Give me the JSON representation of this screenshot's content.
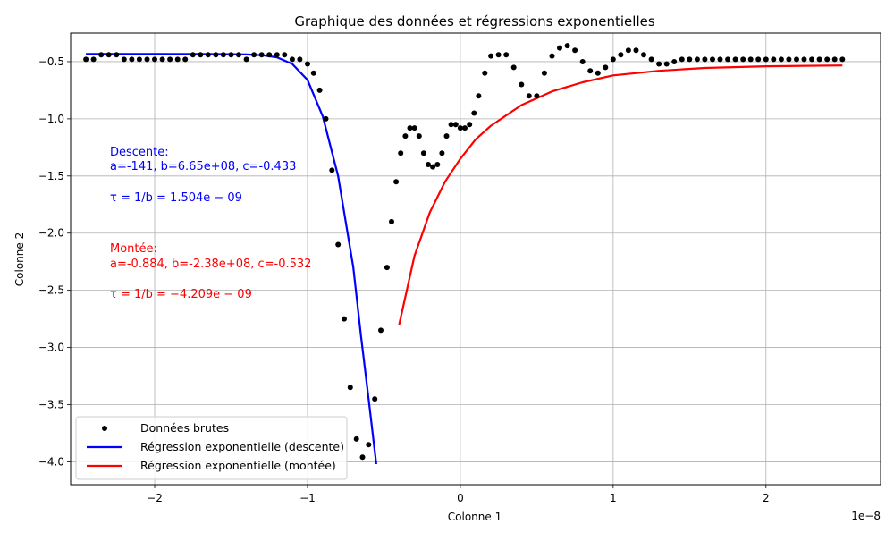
{
  "chart_data": {
    "type": "scatter",
    "title": "Graphique des données et régressions exponentielles",
    "xlabel": "Colonne 1",
    "ylabel": "Colonne 2",
    "x_offset_label": "1e−8",
    "xlim": [
      -2.55e-08,
      2.75e-08
    ],
    "ylim": [
      -4.2,
      -0.25
    ],
    "x_ticks": [
      -2e-08,
      -1e-08,
      0,
      1e-08,
      2e-08
    ],
    "x_tick_labels": [
      "−2",
      "−1",
      "0",
      "1",
      "2"
    ],
    "y_ticks": [
      -4.0,
      -3.5,
      -3.0,
      -2.5,
      -2.0,
      -1.5,
      -1.0,
      -0.5
    ],
    "y_tick_labels": [
      "−4.0",
      "−3.5",
      "−3.0",
      "−2.5",
      "−2.0",
      "−1.5",
      "−1.0",
      "−0.5"
    ],
    "grid": true,
    "legend_position": "bottom-left",
    "legend": [
      {
        "label": "Données brutes",
        "style": "marker",
        "color": "#000000"
      },
      {
        "label": "Régression exponentielle (descente)",
        "style": "line",
        "color": "#0000ff"
      },
      {
        "label": "Régression exponentielle (montée)",
        "style": "line",
        "color": "#ff0000"
      }
    ],
    "annotations": {
      "descent": {
        "color": "#0000ff",
        "heading": "Descente:",
        "params": "a=-141, b=6.65e+08, c=-0.433",
        "tau": "τ = 1/b = 1.504e − 09"
      },
      "rise": {
        "color": "#ff0000",
        "heading": "Montée:",
        "params": "a=-0.884, b=-2.38e+08, c=-0.532",
        "tau": "τ = 1/b = −4.209e − 09"
      }
    },
    "series": [
      {
        "name": "Données brutes",
        "kind": "points",
        "color": "#000000",
        "x": [
          -2.45e-08,
          -2.4e-08,
          -2.35e-08,
          -2.3e-08,
          -2.25e-08,
          -2.2e-08,
          -2.15e-08,
          -2.1e-08,
          -2.05e-08,
          -2e-08,
          -1.95e-08,
          -1.9e-08,
          -1.85e-08,
          -1.8e-08,
          -1.75e-08,
          -1.7e-08,
          -1.65e-08,
          -1.6e-08,
          -1.55e-08,
          -1.5e-08,
          -1.45e-08,
          -1.4e-08,
          -1.35e-08,
          -1.3e-08,
          -1.25e-08,
          -1.2e-08,
          -1.15e-08,
          -1.1e-08,
          -1.05e-08,
          -1e-08,
          -9.6e-09,
          -9.2e-09,
          -8.8e-09,
          -8.4e-09,
          -8e-09,
          -7.6e-09,
          -7.2e-09,
          -6.8e-09,
          -6.4e-09,
          -6e-09,
          -5.6e-09,
          -5.2e-09,
          -4.8e-09,
          -4.5e-09,
          -4.2e-09,
          -3.9e-09,
          -3.6e-09,
          -3.3e-09,
          -3e-09,
          -2.7e-09,
          -2.4e-09,
          -2.1e-09,
          -1.8e-09,
          -1.5e-09,
          -1.2e-09,
          -9e-10,
          -6e-10,
          -3e-10,
          0,
          3e-10,
          6e-10,
          9e-10,
          1.2e-09,
          1.6e-09,
          2e-09,
          2.5e-09,
          3e-09,
          3.5e-09,
          4e-09,
          4.5e-09,
          5e-09,
          5.5e-09,
          6e-09,
          6.5e-09,
          7e-09,
          7.5e-09,
          8e-09,
          8.5e-09,
          9e-09,
          9.5e-09,
          1e-08,
          1.05e-08,
          1.1e-08,
          1.15e-08,
          1.2e-08,
          1.25e-08,
          1.3e-08,
          1.35e-08,
          1.4e-08,
          1.45e-08,
          1.5e-08,
          1.55e-08,
          1.6e-08,
          1.65e-08,
          1.7e-08,
          1.75e-08,
          1.8e-08,
          1.85e-08,
          1.9e-08,
          1.95e-08,
          2e-08,
          2.05e-08,
          2.1e-08,
          2.15e-08,
          2.2e-08,
          2.25e-08,
          2.3e-08,
          2.35e-08,
          2.4e-08,
          2.45e-08,
          2.5e-08
        ],
        "y": [
          -0.48,
          -0.48,
          -0.44,
          -0.44,
          -0.44,
          -0.48,
          -0.48,
          -0.48,
          -0.48,
          -0.48,
          -0.48,
          -0.48,
          -0.48,
          -0.48,
          -0.44,
          -0.44,
          -0.44,
          -0.44,
          -0.44,
          -0.44,
          -0.44,
          -0.48,
          -0.44,
          -0.44,
          -0.44,
          -0.44,
          -0.44,
          -0.48,
          -0.48,
          -0.52,
          -0.6,
          -0.75,
          -1.0,
          -1.45,
          -2.1,
          -2.75,
          -3.35,
          -3.8,
          -3.96,
          -3.85,
          -3.45,
          -2.85,
          -2.3,
          -1.9,
          -1.55,
          -1.3,
          -1.15,
          -1.08,
          -1.08,
          -1.15,
          -1.3,
          -1.4,
          -1.42,
          -1.4,
          -1.3,
          -1.15,
          -1.05,
          -1.05,
          -1.08,
          -1.08,
          -1.05,
          -0.95,
          -0.8,
          -0.6,
          -0.45,
          -0.44,
          -0.44,
          -0.55,
          -0.7,
          -0.8,
          -0.8,
          -0.6,
          -0.45,
          -0.38,
          -0.36,
          -0.4,
          -0.5,
          -0.58,
          -0.6,
          -0.55,
          -0.48,
          -0.44,
          -0.4,
          -0.4,
          -0.44,
          -0.48,
          -0.52,
          -0.52,
          -0.5,
          -0.48,
          -0.48,
          -0.48,
          -0.48,
          -0.48,
          -0.48,
          -0.48,
          -0.48,
          -0.48,
          -0.48,
          -0.48,
          -0.48,
          -0.48,
          -0.48,
          -0.48,
          -0.48,
          -0.48,
          -0.48,
          -0.48,
          -0.48,
          -0.48,
          -0.48
        ]
      },
      {
        "name": "Régression exponentielle (descente)",
        "kind": "line",
        "color": "#0000ff",
        "x": [
          -2.45e-08,
          -2e-08,
          -1.6e-08,
          -1.4e-08,
          -1.3e-08,
          -1.2e-08,
          -1.1e-08,
          -1e-08,
          -9e-09,
          -8e-09,
          -7e-09,
          -6.5e-09,
          -6e-09,
          -5.5e-09
        ],
        "y": [
          -0.433,
          -0.433,
          -0.434,
          -0.437,
          -0.443,
          -0.462,
          -0.52,
          -0.66,
          -0.98,
          -1.5,
          -2.3,
          -2.9,
          -3.45,
          -4.02
        ]
      },
      {
        "name": "Régression exponentielle (montée)",
        "kind": "line",
        "color": "#ff0000",
        "x": [
          -4e-09,
          -3e-09,
          -2e-09,
          -1e-09,
          0,
          1e-09,
          2e-09,
          4e-09,
          6e-09,
          8e-09,
          1e-08,
          1.3e-08,
          1.6e-08,
          2e-08,
          2.5e-08
        ],
        "y": [
          -2.8,
          -2.2,
          -1.82,
          -1.55,
          -1.35,
          -1.18,
          -1.06,
          -0.88,
          -0.76,
          -0.68,
          -0.62,
          -0.58,
          -0.555,
          -0.54,
          -0.533
        ]
      }
    ]
  }
}
